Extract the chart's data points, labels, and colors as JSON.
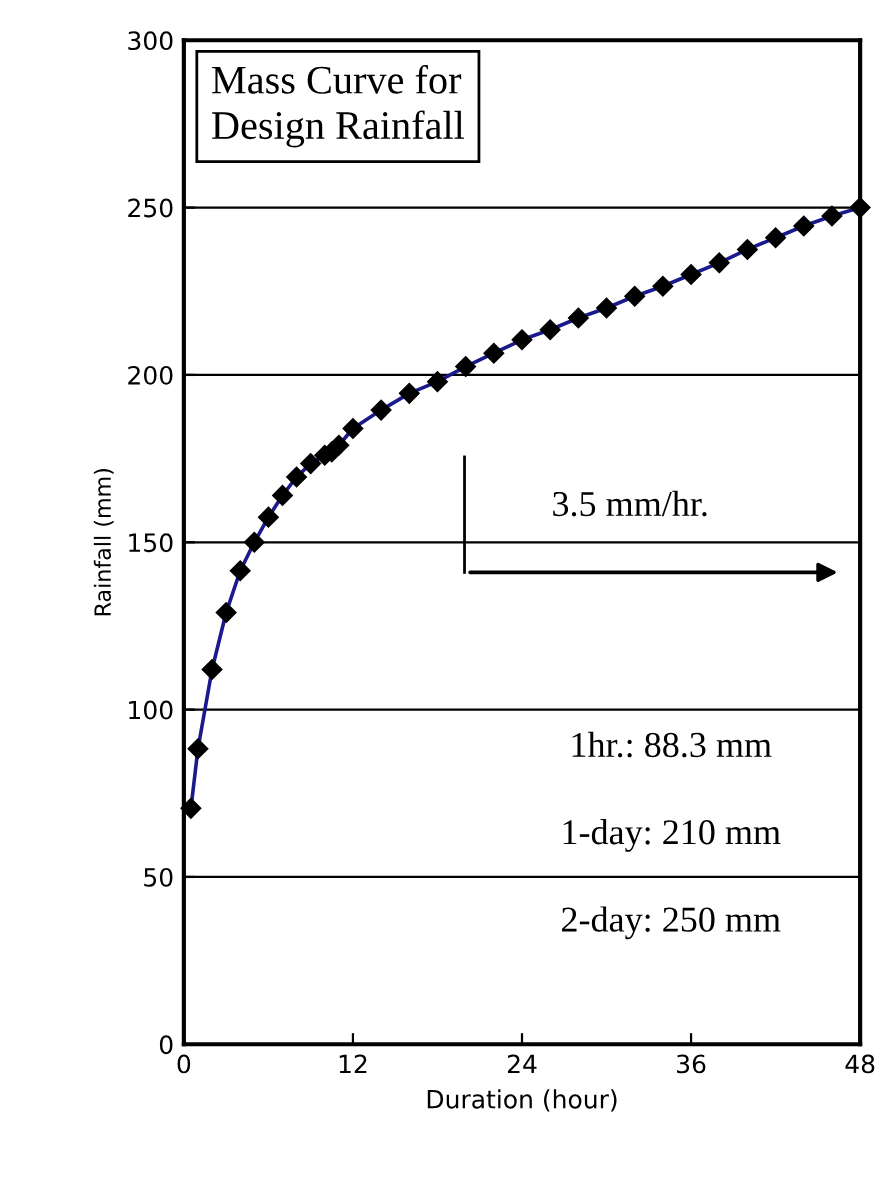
{
  "chart_data": {
    "type": "line",
    "title": "Mass Curve for\nDesign Rainfall",
    "xlabel": "Duration (hour)",
    "ylabel": "Rainfall (mm)",
    "x": [
      0.5,
      1,
      2,
      3,
      4,
      5,
      6,
      7,
      8,
      9,
      10,
      10.5,
      11,
      12,
      14,
      16,
      18,
      20,
      22,
      24,
      26,
      28,
      30,
      32,
      34,
      36,
      38,
      40,
      42,
      44,
      46,
      48
    ],
    "series": [
      {
        "color": "#1a1a8c",
        "values": [
          70.5,
          88.3,
          112,
          129,
          141.5,
          150,
          157.5,
          164,
          169.5,
          173.5,
          176,
          177,
          179,
          184,
          189.5,
          194.5,
          198,
          202.5,
          206.5,
          210.5,
          213.5,
          217,
          220,
          223.5,
          226.5,
          230,
          233.5,
          237.5,
          241,
          244.5,
          247.5,
          250
        ]
      }
    ],
    "marker": "diamond",
    "line_style": "solid",
    "xlim": [
      0,
      48
    ],
    "ylim": [
      0,
      300
    ],
    "xticks": [
      0,
      12,
      24,
      36,
      48
    ],
    "yticks": [
      0,
      50,
      100,
      150,
      200,
      250,
      300
    ],
    "grid": "y",
    "annotations": [
      "3.5 mm/hr.",
      "1hr.: 88.3 mm",
      "1-day: 210 mm",
      "2-day: 250 mm"
    ]
  }
}
